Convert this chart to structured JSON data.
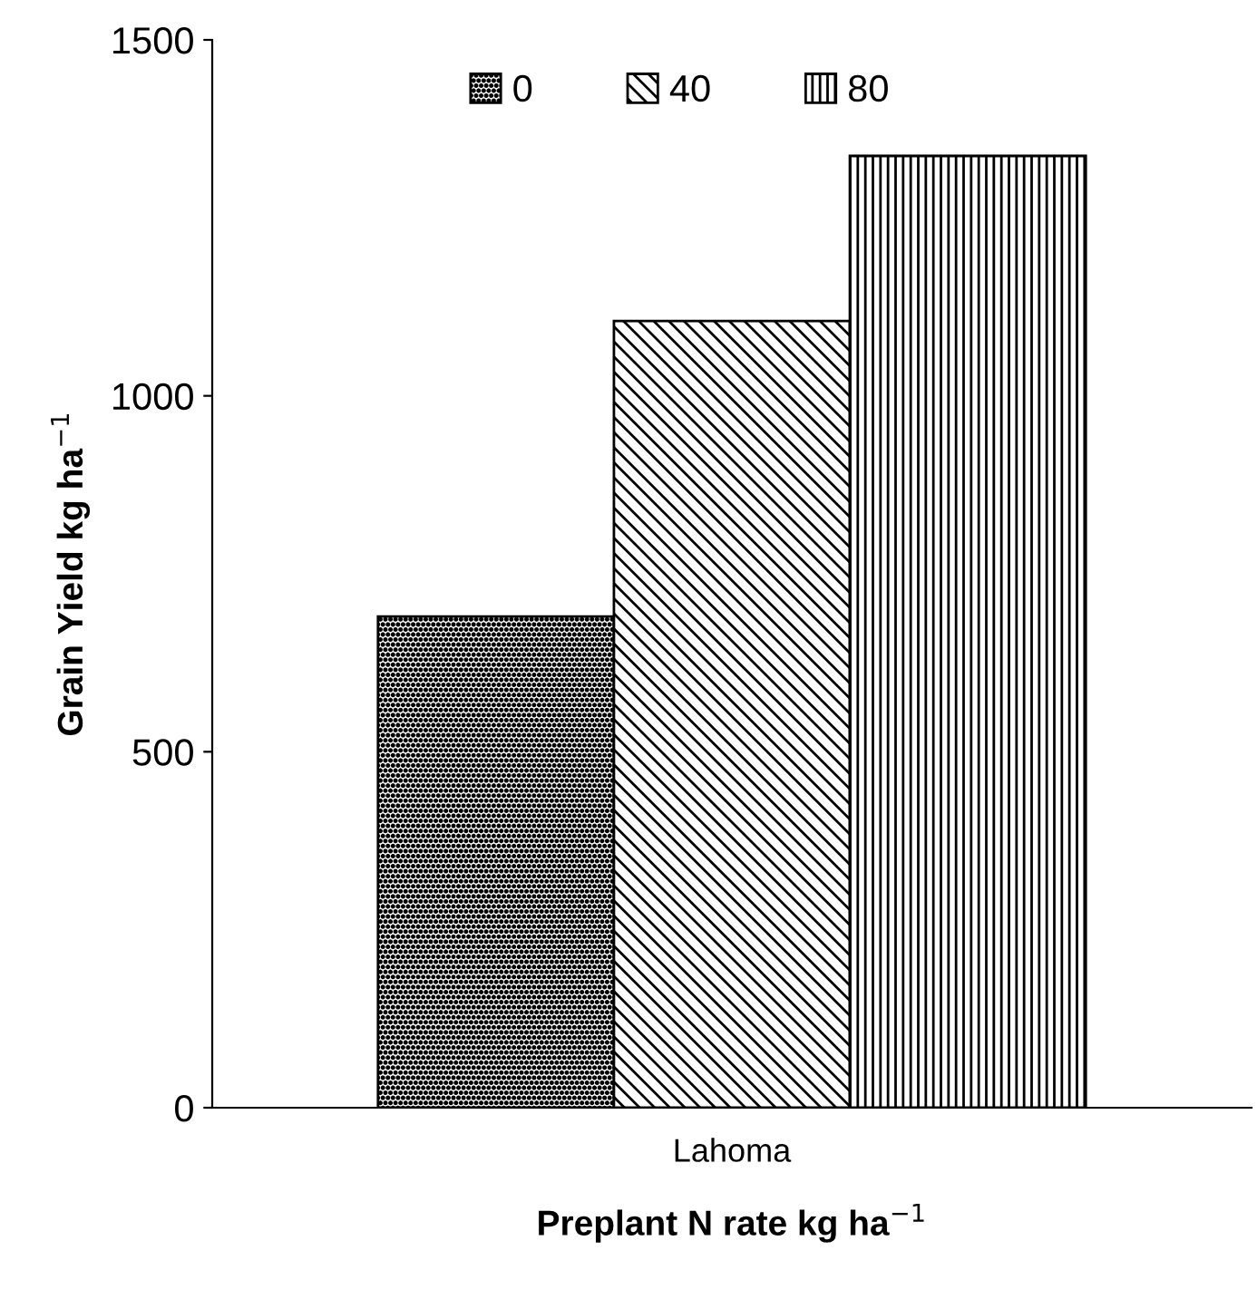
{
  "chart_data": {
    "type": "bar",
    "categories": [
      "Lahoma"
    ],
    "series": [
      {
        "name": "0",
        "color": "#000000",
        "values": [
          690
        ]
      },
      {
        "name": "40",
        "color": "#000000",
        "values": [
          1105
        ]
      },
      {
        "name": "80",
        "color": "#000000",
        "values": [
          1337
        ]
      }
    ],
    "xlabel": "Preplant N rate kg ha$^{−1}$",
    "ylabel": "Grain Yield kg ha$^{−1}$",
    "ylim": [
      0,
      1500
    ],
    "yticks": [
      0,
      500,
      1000,
      1500
    ],
    "grid": false,
    "legend": "top"
  }
}
